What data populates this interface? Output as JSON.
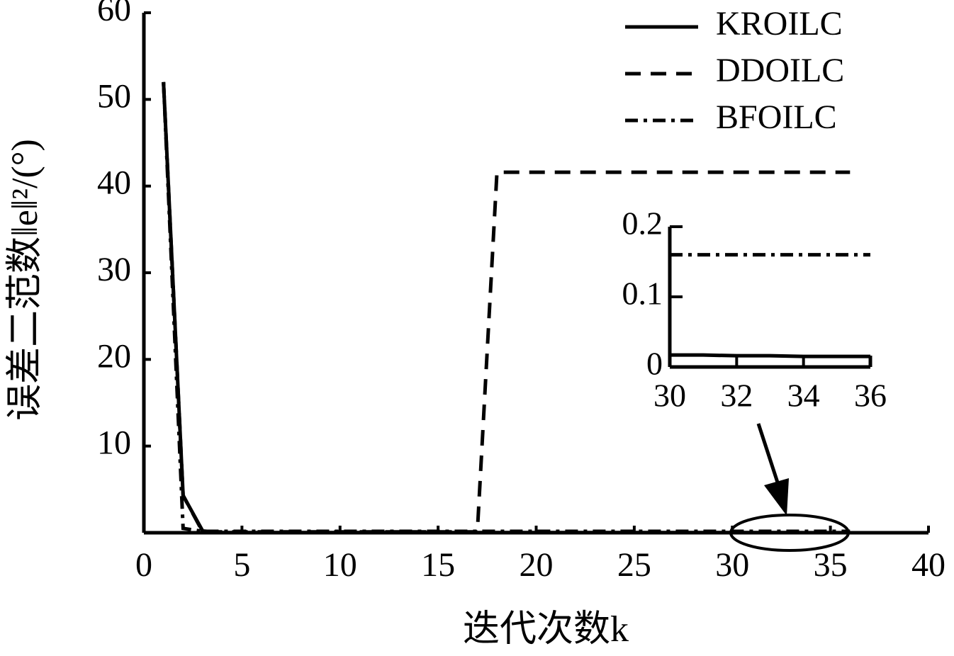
{
  "chart_data": {
    "type": "line",
    "x_label": "迭代次数k",
    "y_label": "误差二范数‖e‖²/(°)",
    "x": [
      1,
      2,
      3,
      4,
      5,
      6,
      7,
      8,
      9,
      10,
      11,
      12,
      13,
      14,
      15,
      16,
      17,
      18,
      19,
      20,
      21,
      22,
      23,
      24,
      25,
      26,
      27,
      28,
      29,
      30,
      31,
      32,
      33,
      34,
      35,
      36
    ],
    "series": [
      {
        "name": "KROILC",
        "color": "#000000",
        "linestyle": "solid",
        "values": [
          52,
          4.3,
          0.2,
          0.02,
          0.02,
          0.02,
          0.02,
          0.02,
          0.02,
          0.02,
          0.02,
          0.02,
          0.02,
          0.02,
          0.02,
          0.02,
          0.02,
          0.02,
          0.02,
          0.02,
          0.02,
          0.02,
          0.02,
          0.02,
          0.02,
          0.02,
          0.02,
          0.02,
          0.02,
          0.017,
          0.017,
          0.016,
          0.016,
          0.015,
          0.015,
          0.015
        ]
      },
      {
        "name": "DDOILC",
        "color": "#000000",
        "linestyle": "dashed",
        "values": [
          52,
          4.3,
          0.1,
          0.1,
          0.1,
          0.1,
          0.1,
          0.1,
          0.1,
          0.1,
          0.1,
          0.1,
          0.1,
          0.1,
          0.1,
          0.1,
          0.1,
          41.6,
          41.6,
          41.6,
          41.6,
          41.6,
          41.6,
          41.6,
          41.6,
          41.6,
          41.6,
          41.6,
          41.6,
          41.6,
          41.6,
          41.6,
          41.6,
          41.6,
          41.6,
          41.6
        ]
      },
      {
        "name": "BFOILC",
        "color": "#000000",
        "linestyle": "dashdot",
        "values": [
          52,
          0.5,
          0.16,
          0.16,
          0.16,
          0.16,
          0.16,
          0.16,
          0.16,
          0.16,
          0.16,
          0.16,
          0.16,
          0.16,
          0.16,
          0.16,
          0.16,
          0.16,
          0.16,
          0.16,
          0.16,
          0.16,
          0.16,
          0.16,
          0.16,
          0.16,
          0.16,
          0.16,
          0.16,
          0.16,
          0.16,
          0.16,
          0.16,
          0.16,
          0.16,
          0.16
        ]
      }
    ],
    "xlim": [
      0,
      40
    ],
    "xticks": [
      0,
      5,
      10,
      15,
      20,
      25,
      30,
      35,
      40
    ],
    "ylim": [
      0,
      60
    ],
    "yticks": [
      10,
      20,
      30,
      40,
      50,
      60
    ],
    "legend": "upper right",
    "inset": {
      "xlim": [
        30,
        36
      ],
      "xticks": [
        30,
        32,
        34,
        36
      ],
      "ylim": [
        0,
        0.2
      ],
      "yticks": [
        0,
        0.1,
        0.2
      ]
    }
  }
}
